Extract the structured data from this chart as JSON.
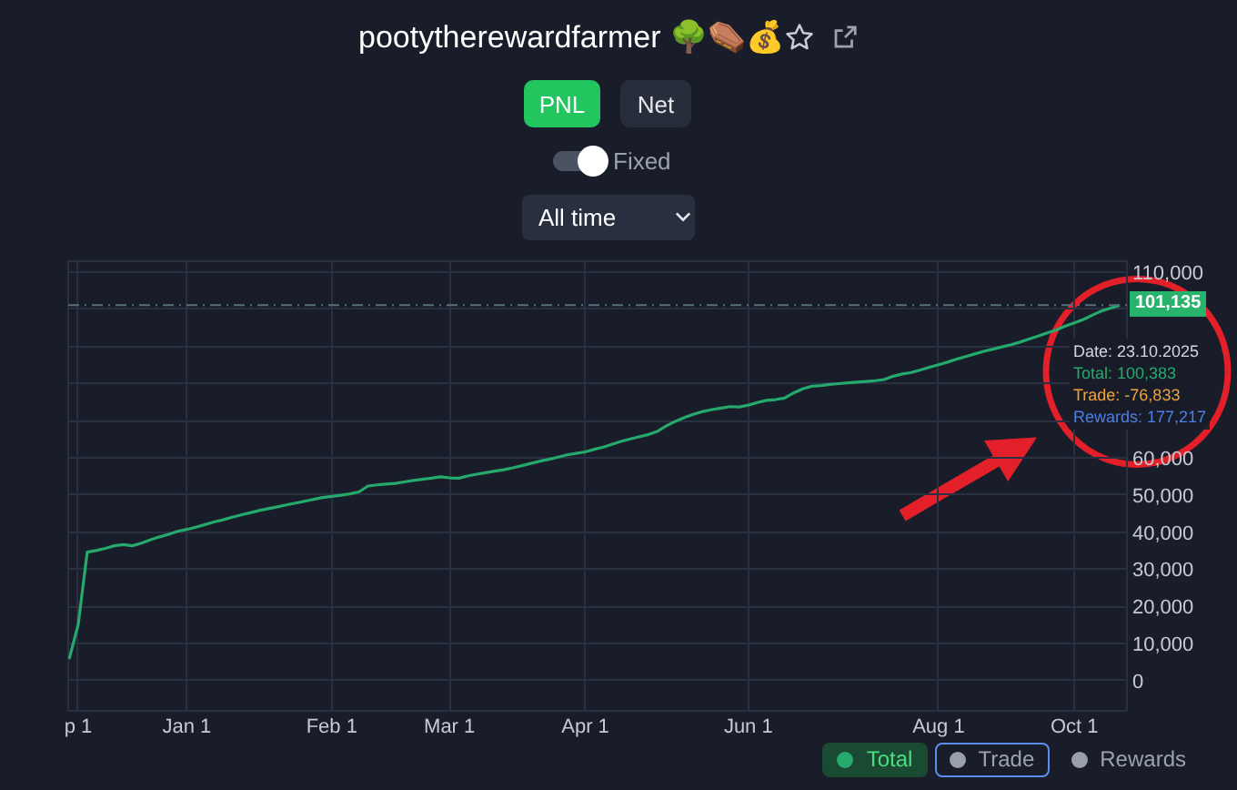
{
  "chart_data": {
    "type": "line",
    "title": "pootytherewardfarmer 🌳⚰️💰",
    "annotations": [
      "PNL",
      "Net",
      "Fixed",
      "All time",
      "Date: 23.10.2025",
      "Total: 100,383",
      "Trade: -76,833",
      "Rewards: 177,217"
    ],
    "categories": [
      null,
      "p 1",
      null,
      null,
      null,
      null,
      null,
      null,
      null,
      null,
      null,
      null,
      null,
      "Jan 1",
      null,
      null,
      null,
      null,
      null,
      null,
      null,
      null,
      null,
      null,
      null,
      null,
      null,
      null,
      null,
      "Feb 1",
      null,
      null,
      null,
      null,
      null,
      null,
      null,
      null,
      null,
      null,
      null,
      null,
      "Mar 1",
      null,
      null,
      null,
      null,
      null,
      null,
      null,
      null,
      null,
      null,
      null,
      null,
      null,
      null,
      "Apr 1",
      null,
      null,
      null,
      null,
      null,
      null,
      null,
      null,
      null,
      null,
      null,
      null,
      null,
      null,
      null,
      null,
      null,
      "Jun 1",
      null,
      null,
      null,
      null,
      null,
      null,
      null,
      null,
      null,
      null,
      null,
      null,
      null,
      null,
      null,
      null,
      null,
      null,
      null,
      null,
      "Aug 1",
      null,
      null,
      null,
      null,
      null,
      null,
      null,
      null,
      null,
      null,
      null,
      null,
      null,
      null,
      "Oct 1",
      null,
      null,
      null,
      null,
      null
    ],
    "series": [
      {
        "name": "Total",
        "color": "#26a96c",
        "values": [
          5700,
          15000,
          34600,
          35000,
          35600,
          36300,
          36600,
          36300,
          37000,
          37900,
          38700,
          39400,
          40200,
          40700,
          41300,
          42000,
          42700,
          43300,
          44000,
          44600,
          45200,
          45800,
          46300,
          46800,
          47300,
          47800,
          48300,
          48800,
          49300,
          49600,
          49900,
          50300,
          50800,
          52400,
          52700,
          52900,
          53100,
          53500,
          53900,
          54200,
          54500,
          54900,
          54600,
          54500,
          55100,
          55600,
          56000,
          56400,
          56800,
          57300,
          57900,
          58500,
          59100,
          59600,
          60200,
          60800,
          61200,
          61600,
          62300,
          62900,
          63700,
          64500,
          65100,
          65700,
          66300,
          67200,
          68700,
          69900,
          70900,
          71800,
          72500,
          73000,
          73400,
          73800,
          73700,
          74200,
          74900,
          75500,
          75700,
          76100,
          77500,
          78600,
          79300,
          79500,
          79800,
          80000,
          80200,
          80400,
          80600,
          80800,
          81100,
          82000,
          82600,
          83000,
          83700,
          84400,
          85100,
          85800,
          86600,
          87300,
          88000,
          88700,
          89300,
          89900,
          90500,
          91200,
          92000,
          92800,
          93700,
          94500,
          95500,
          96400,
          97300,
          98500,
          99600,
          100383,
          101135
        ]
      },
      {
        "name": "Trade",
        "color": "#9aa0ab",
        "values": [
          null,
          null,
          null,
          null,
          null,
          null,
          null,
          null,
          null,
          null,
          null,
          null,
          null,
          null,
          null,
          null,
          null,
          null,
          null,
          null,
          null,
          null,
          null,
          null,
          null,
          null,
          null,
          null,
          null,
          null,
          null,
          null,
          null,
          null,
          null,
          null,
          null,
          null,
          null,
          null,
          null,
          null,
          null,
          null,
          null,
          null,
          null,
          null,
          null,
          null,
          null,
          null,
          null,
          null,
          null,
          null,
          null,
          null,
          null,
          null,
          null,
          null,
          null,
          null,
          null,
          null,
          null,
          null,
          null,
          null,
          null,
          null,
          null,
          null,
          null,
          null,
          null,
          null,
          null,
          null,
          null,
          null,
          null,
          null,
          null,
          null,
          null,
          null,
          null,
          null,
          null,
          null,
          null,
          null,
          null,
          null,
          null,
          null,
          null,
          null,
          null,
          null,
          null,
          null,
          null,
          null,
          null,
          null,
          null,
          null,
          null,
          null,
          null,
          null,
          null,
          null,
          null
        ]
      },
      {
        "name": "Rewards",
        "color": "#9aa0ab",
        "values": [
          null,
          null,
          null,
          null,
          null,
          null,
          null,
          null,
          null,
          null,
          null,
          null,
          null,
          null,
          null,
          null,
          null,
          null,
          null,
          null,
          null,
          null,
          null,
          null,
          null,
          null,
          null,
          null,
          null,
          null,
          null,
          null,
          null,
          null,
          null,
          null,
          null,
          null,
          null,
          null,
          null,
          null,
          null,
          null,
          null,
          null,
          null,
          null,
          null,
          null,
          null,
          null,
          null,
          null,
          null,
          null,
          null,
          null,
          null,
          null,
          null,
          null,
          null,
          null,
          null,
          null,
          null,
          null,
          null,
          null,
          null,
          null,
          null,
          null,
          null,
          null,
          null,
          null,
          null,
          null,
          null,
          null,
          null,
          null,
          null,
          null,
          null,
          null,
          null,
          null,
          null,
          null,
          null,
          null,
          null,
          null,
          null,
          null,
          null,
          null,
          null,
          null,
          null,
          null,
          null,
          null,
          null,
          null,
          null,
          null,
          null,
          null,
          null,
          null,
          null,
          null,
          null
        ]
      }
    ],
    "ylim": [
      -8200,
      113000
    ],
    "yticks": [
      0,
      {
        "value": 10000,
        "label": "10,000"
      },
      {
        "value": 20000,
        "label": "20,000"
      },
      {
        "value": 30000,
        "label": "30,000"
      },
      {
        "value": 40000,
        "label": "40,000"
      },
      {
        "value": 50000,
        "label": "50,000"
      },
      {
        "value": 60000,
        "label": "60,000"
      },
      {
        "value": 70000,
        "label": null
      },
      {
        "value": 80000,
        "label": null
      },
      {
        "value": 90000,
        "label": null
      },
      {
        "value": 100000,
        "label": null
      },
      {
        "value": 110000,
        "label": "110,000"
      }
    ],
    "ref_lines": [
      {
        "axis": "y",
        "value": 101135,
        "label": "101,135",
        "color": "#56707e",
        "line_style": "dashed"
      }
    ],
    "grid": true,
    "legend": "bottom right"
  }
}
